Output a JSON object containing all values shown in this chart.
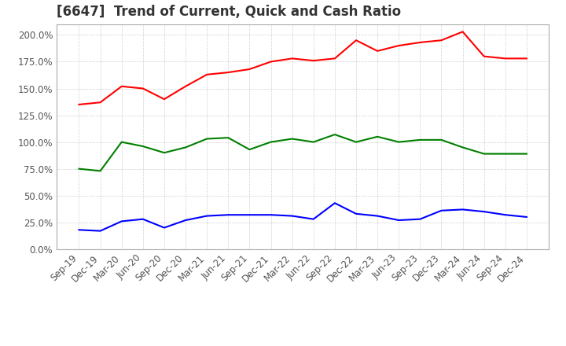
{
  "title": "[6647]  Trend of Current, Quick and Cash Ratio",
  "x_labels": [
    "Sep-19",
    "Dec-19",
    "Mar-20",
    "Jun-20",
    "Sep-20",
    "Dec-20",
    "Mar-21",
    "Jun-21",
    "Sep-21",
    "Dec-21",
    "Mar-22",
    "Jun-22",
    "Sep-22",
    "Dec-22",
    "Mar-23",
    "Jun-23",
    "Sep-23",
    "Dec-23",
    "Mar-24",
    "Jun-24",
    "Sep-24",
    "Dec-24"
  ],
  "current_ratio": [
    135,
    137,
    152,
    150,
    140,
    152,
    163,
    165,
    168,
    175,
    178,
    176,
    178,
    195,
    185,
    190,
    193,
    195,
    203,
    180,
    178,
    178
  ],
  "quick_ratio": [
    75,
    73,
    100,
    96,
    90,
    95,
    103,
    104,
    93,
    100,
    103,
    100,
    107,
    100,
    105,
    100,
    102,
    102,
    95,
    89,
    89,
    89
  ],
  "cash_ratio": [
    18,
    17,
    26,
    28,
    20,
    27,
    31,
    32,
    32,
    32,
    31,
    28,
    43,
    33,
    31,
    27,
    28,
    36,
    37,
    35,
    32,
    30
  ],
  "current_color": "#ff0000",
  "quick_color": "#008000",
  "cash_color": "#0000ff",
  "ylim": [
    0,
    210
  ],
  "yticks": [
    0,
    25,
    50,
    75,
    100,
    125,
    150,
    175,
    200
  ],
  "background_color": "#ffffff",
  "plot_bg_color": "#ffffff",
  "grid_color": "#aaaaaa",
  "title_fontsize": 12,
  "tick_fontsize": 8.5,
  "legend_fontsize": 9
}
